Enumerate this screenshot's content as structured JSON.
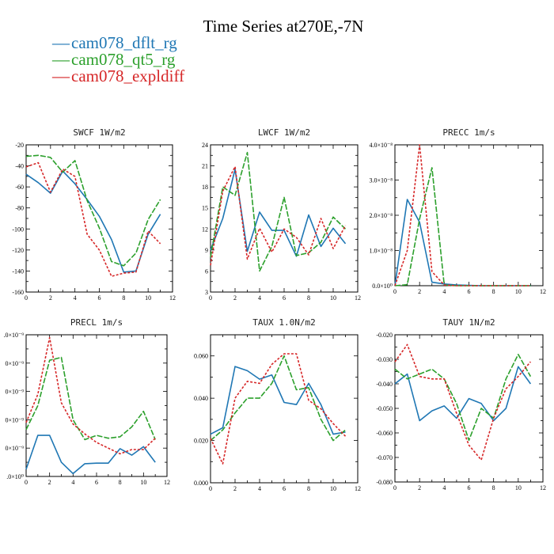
{
  "title": "Time Series at270E,-7N",
  "legend": [
    {
      "name": "cam078_dflt_rg",
      "color": "#1f77b4"
    },
    {
      "name": "cam078_qt5_rg",
      "color": "#2ca02c"
    },
    {
      "name": "cam078_expldiff",
      "color": "#d62728"
    }
  ],
  "colors": {
    "dflt": "#1f77b4",
    "qt5": "#2ca02c",
    "expl": "#d62728"
  },
  "chart_data": [
    {
      "type": "line",
      "title": "SWCF  1W/m2",
      "x": [
        0,
        1,
        2,
        3,
        4,
        5,
        6,
        7,
        8,
        9,
        10,
        11
      ],
      "xlim": [
        0,
        12
      ],
      "xticks": [
        "0",
        "2",
        "4",
        "6",
        "8",
        "10",
        "12"
      ],
      "ylim": [
        -160,
        -20
      ],
      "yticks": [
        "-160",
        "-140",
        "-120",
        "-100",
        "-80",
        "-60",
        "-40",
        "-20"
      ],
      "series": [
        {
          "name": "cam078_dflt_rg",
          "values": [
            -48,
            -56,
            -66,
            -45,
            -57,
            -72,
            -88,
            -110,
            -141,
            -140,
            -105,
            -86
          ]
        },
        {
          "name": "cam078_qt5_rg",
          "values": [
            -31,
            -30,
            -32,
            -46,
            -35,
            -73,
            -99,
            -131,
            -135,
            -123,
            -91,
            -72
          ]
        },
        {
          "name": "cam078_expldiff",
          "values": [
            -41,
            -37,
            -65,
            -43,
            -50,
            -105,
            -120,
            -145,
            -142,
            -141,
            -102,
            -114
          ]
        }
      ]
    },
    {
      "type": "line",
      "title": "LWCF  1W/m2",
      "x": [
        0,
        1,
        2,
        3,
        4,
        5,
        6,
        7,
        8,
        9,
        10,
        11
      ],
      "xlim": [
        0,
        12
      ],
      "xticks": [
        "0",
        "2",
        "4",
        "6",
        "8",
        "10",
        "12"
      ],
      "ylim": [
        3,
        24
      ],
      "yticks": [
        "3",
        "6",
        "9",
        "12",
        "15",
        "18",
        "21",
        "24"
      ],
      "series": [
        {
          "name": "cam078_dflt_rg",
          "values": [
            9,
            13.5,
            20.5,
            8.8,
            14.4,
            11.8,
            11.8,
            8.1,
            14,
            9.5,
            12.1,
            9.9
          ]
        },
        {
          "name": "cam078_qt5_rg",
          "values": [
            8,
            18,
            16.8,
            22.9,
            6,
            9.5,
            16.5,
            8.2,
            8.6,
            10.1,
            13.7,
            12
          ]
        },
        {
          "name": "cam078_expldiff",
          "values": [
            6.8,
            17.4,
            20.9,
            7.7,
            12.1,
            8.7,
            12,
            10.8,
            8.3,
            13.5,
            9.2,
            12.5
          ]
        }
      ]
    },
    {
      "type": "line",
      "title": "PRECC  1m/s",
      "x": [
        0,
        1,
        2,
        3,
        4,
        5,
        6,
        7,
        8,
        9,
        10,
        11
      ],
      "xlim": [
        0,
        12
      ],
      "xticks": [
        "0",
        "2",
        "4",
        "6",
        "8",
        "10",
        "12"
      ],
      "ylim": [
        0,
        4e-08
      ],
      "yticks": [
        "0.0×10⁰",
        "1.0×10⁻⁸",
        "2.0×10⁻⁸",
        "3.0×10⁻⁸",
        "4.0×10⁻⁸"
      ],
      "series": [
        {
          "name": "cam078_dflt_rg",
          "values": [
            0,
            2.45e-08,
            1.8e-08,
            1e-09,
            5e-10,
            2e-10,
            1e-10,
            0,
            0,
            0,
            0,
            0
          ]
        },
        {
          "name": "cam078_qt5_rg",
          "values": [
            0,
            3e-10,
            1.9e-08,
            3.35e-08,
            2e-10,
            0,
            0,
            0,
            0,
            0,
            0,
            0
          ]
        },
        {
          "name": "cam078_expldiff",
          "values": [
            0,
            1e-08,
            4e-08,
            4e-09,
            2e-10,
            0,
            0,
            0,
            0,
            0,
            0,
            0
          ]
        }
      ]
    },
    {
      "type": "line",
      "title": "PRECL  1m/s",
      "x": [
        0,
        1,
        2,
        3,
        4,
        5,
        6,
        7,
        8,
        9,
        10,
        11
      ],
      "xlim": [
        0,
        12
      ],
      "xticks": [
        "0",
        "2",
        "4",
        "6",
        "8",
        "10",
        "12"
      ],
      "ylim": [
        0,
        5e-09
      ],
      "yticks": [
        ".0×10⁰",
        "0×10⁻⁹",
        "0×10⁻⁹",
        "0×10⁻⁹",
        "0×10⁻⁹",
        ".0×10⁻⁹"
      ],
      "series": [
        {
          "name": "cam078_dflt_rg",
          "values": [
            2.5e-10,
            1.45e-09,
            1.45e-09,
            5e-10,
            1e-10,
            4.5e-10,
            4.7e-10,
            4.7e-10,
            9.8e-10,
            7.5e-10,
            1.05e-09,
            5e-10
          ]
        },
        {
          "name": "cam078_qt5_rg",
          "values": [
            1.65e-09,
            2.5e-09,
            4.1e-09,
            4.2e-09,
            2e-09,
            1.3e-09,
            1.45e-09,
            1.35e-09,
            1.4e-09,
            1.75e-09,
            2.3e-09,
            1.3e-09
          ]
        },
        {
          "name": "cam078_expldiff",
          "values": [
            1.9e-09,
            2.9e-09,
            4.9e-09,
            2.6e-09,
            1.85e-09,
            1.5e-09,
            1.2e-09,
            1e-09,
            8e-10,
            9.5e-10,
            9.5e-10,
            1.35e-09
          ]
        }
      ]
    },
    {
      "type": "line",
      "title": "TAUX  1.0N/m2",
      "x": [
        0,
        1,
        2,
        3,
        4,
        5,
        6,
        7,
        8,
        9,
        10,
        11
      ],
      "xlim": [
        0,
        12
      ],
      "xticks": [
        "0",
        "2",
        "4",
        "6",
        "8",
        "10",
        "12"
      ],
      "ylim": [
        0,
        0.07
      ],
      "yticks": [
        "0.000",
        "0.020",
        "0.040",
        "0.060"
      ],
      "series": [
        {
          "name": "cam078_dflt_rg",
          "values": [
            0.023,
            0.026,
            0.055,
            0.053,
            0.049,
            0.051,
            0.038,
            0.037,
            0.047,
            0.037,
            0.023,
            0.024
          ]
        },
        {
          "name": "cam078_qt5_rg",
          "values": [
            0.02,
            0.025,
            0.033,
            0.04,
            0.04,
            0.047,
            0.06,
            0.044,
            0.045,
            0.03,
            0.02,
            0.025
          ]
        },
        {
          "name": "cam078_expldiff",
          "values": [
            0.021,
            0.009,
            0.04,
            0.048,
            0.047,
            0.056,
            0.061,
            0.061,
            0.039,
            0.035,
            0.028,
            0.022
          ]
        }
      ]
    },
    {
      "type": "line",
      "title": "TAUY  1N/m2",
      "x": [
        0,
        1,
        2,
        3,
        4,
        5,
        6,
        7,
        8,
        9,
        10,
        11
      ],
      "xlim": [
        0,
        12
      ],
      "xticks": [
        "0",
        "2",
        "4",
        "6",
        "8",
        "10",
        "12"
      ],
      "ylim": [
        -0.08,
        -0.02
      ],
      "yticks": [
        "-0.080",
        "-0.070",
        "-0.060",
        "-0.050",
        "-0.040",
        "-0.030",
        "-0.020"
      ],
      "series": [
        {
          "name": "cam078_dflt_rg",
          "values": [
            -0.04,
            -0.036,
            -0.055,
            -0.051,
            -0.049,
            -0.054,
            -0.046,
            -0.048,
            -0.055,
            -0.05,
            -0.033,
            -0.04
          ]
        },
        {
          "name": "cam078_qt5_rg",
          "values": [
            -0.034,
            -0.038,
            -0.036,
            -0.034,
            -0.038,
            -0.048,
            -0.063,
            -0.05,
            -0.054,
            -0.038,
            -0.028,
            -0.037
          ]
        },
        {
          "name": "cam078_expldiff",
          "values": [
            -0.031,
            -0.024,
            -0.037,
            -0.038,
            -0.038,
            -0.052,
            -0.065,
            -0.071,
            -0.054,
            -0.042,
            -0.037,
            -0.031
          ]
        }
      ]
    }
  ]
}
